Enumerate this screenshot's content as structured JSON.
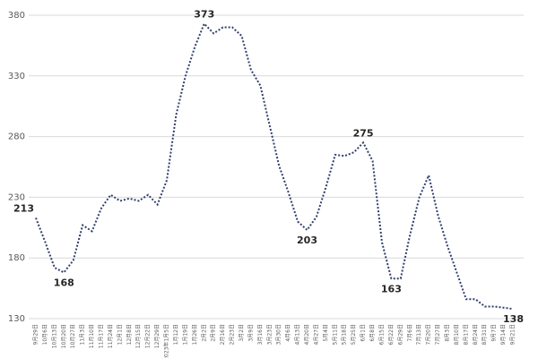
{
  "chart_data": {
    "type": "line",
    "categories": [
      "9月29日",
      "10月6日",
      "10月13日",
      "10月20日",
      "10月27日",
      "11月3日",
      "11月10日",
      "11月17日",
      "11月24日",
      "12月1日",
      "12月8日",
      "12月15日",
      "12月22日",
      "12月29日",
      "2023年1月5日",
      "1月12日",
      "1月19日",
      "1月26日",
      "2月2日",
      "2月9日",
      "2月16日",
      "2月23日",
      "3月2日",
      "3月9日",
      "3月16日",
      "3月23日",
      "3月30日",
      "4月6日",
      "4月13日",
      "4月20日",
      "4月27日",
      "5月4日",
      "5月11日",
      "5月18日",
      "5月25日",
      "6月1日",
      "6月8日",
      "6月15日",
      "6月22日",
      "6月29日",
      "7月6日",
      "7月13日",
      "7月20日",
      "7月27日",
      "8月3日",
      "8月10日",
      "8月17日",
      "8月24日",
      "8月31日",
      "9月7日",
      "9月14日",
      "9月21日"
    ],
    "values": [
      213,
      193,
      172,
      168,
      178,
      207,
      202,
      221,
      232,
      227,
      229,
      227,
      232,
      224,
      244,
      298,
      330,
      354,
      373,
      365,
      370,
      370,
      363,
      335,
      322,
      289,
      256,
      234,
      210,
      203,
      214,
      238,
      265,
      264,
      267,
      275,
      260,
      193,
      163,
      163,
      199,
      230,
      248,
      215,
      190,
      168,
      146,
      146,
      140,
      140,
      139,
      138
    ],
    "labeled_points": [
      0,
      3,
      18,
      29,
      35,
      38,
      51
    ],
    "color": "#2f3f6b",
    "line_style": "dotted",
    "ylim": [
      130,
      380
    ],
    "yticks": [
      130,
      180,
      230,
      280,
      330,
      380
    ],
    "grid": true
  }
}
